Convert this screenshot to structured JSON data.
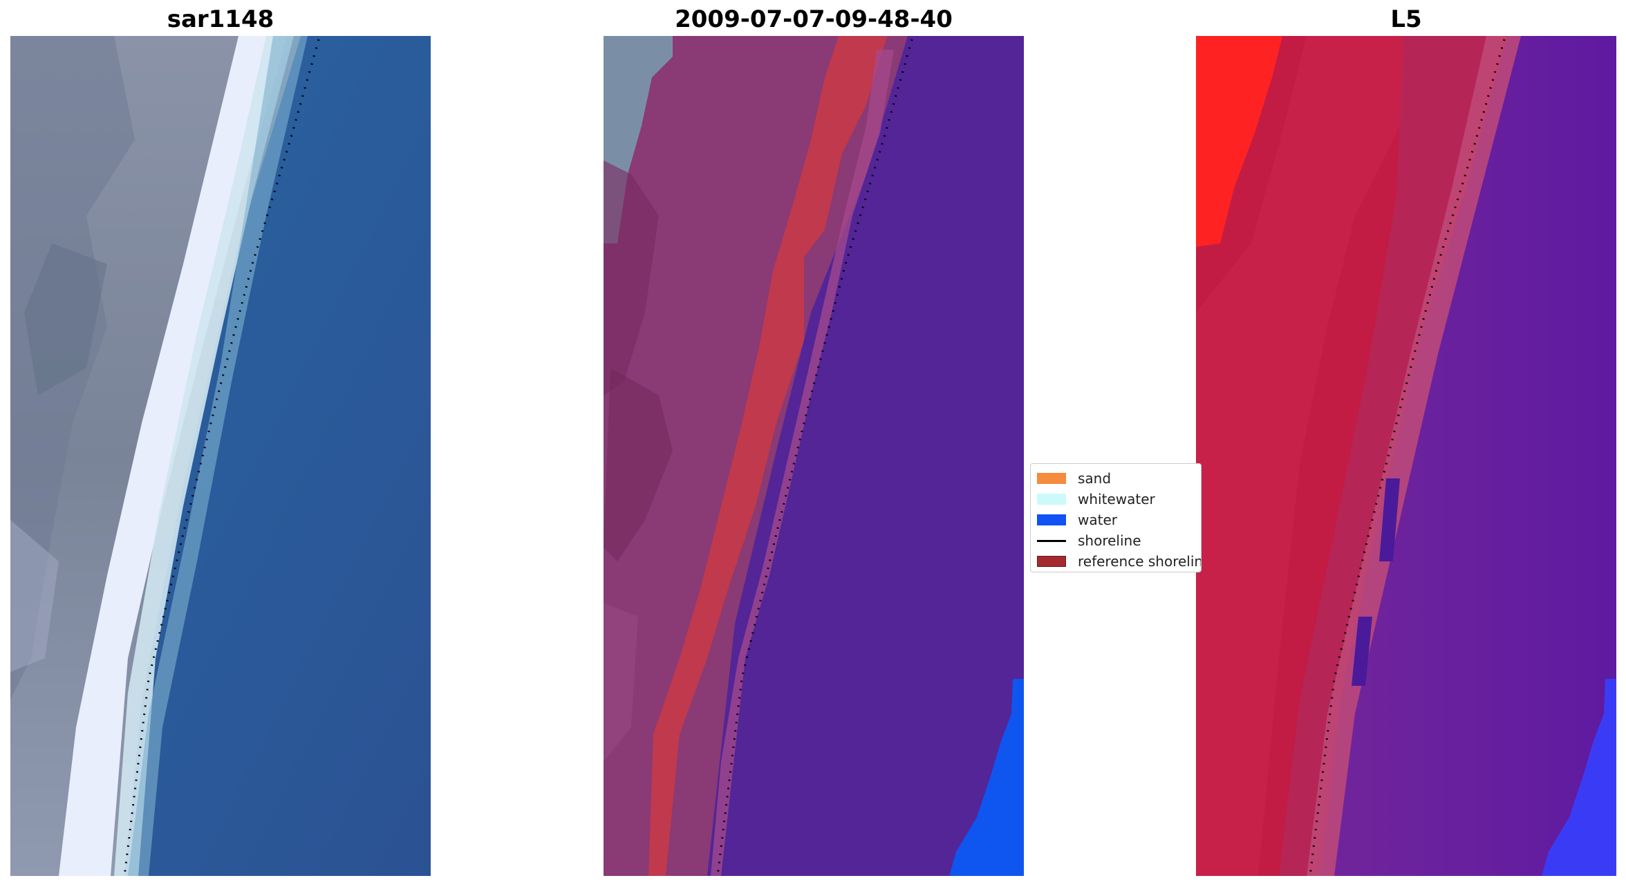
{
  "panels": [
    {
      "title": "sar1148"
    },
    {
      "title": "2009-07-07-09-48-40"
    },
    {
      "title": "L5"
    }
  ],
  "legend": {
    "items": [
      {
        "label": "sand",
        "color": "#f58b3d",
        "kind": "patch"
      },
      {
        "label": "whitewater",
        "color": "#ccfafa",
        "kind": "patch"
      },
      {
        "label": "water",
        "color": "#1152f5",
        "kind": "patch"
      },
      {
        "label": "shoreline",
        "color": "#000000",
        "kind": "line"
      },
      {
        "label": "reference shoreline",
        "color": "#a32a2f",
        "kind": "patch"
      }
    ]
  }
}
